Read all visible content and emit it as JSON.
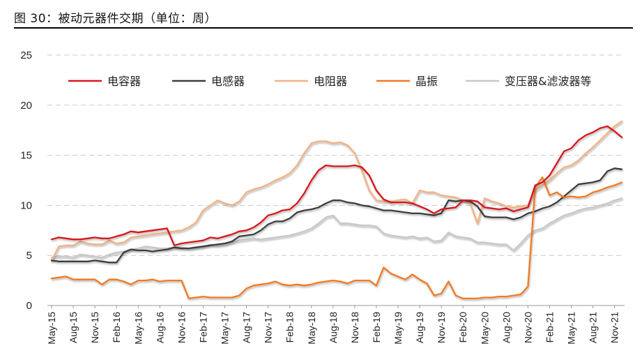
{
  "figure": {
    "title": "图 30：被动元器件交期（单位：周）"
  },
  "chart_data": {
    "type": "line",
    "ylim": [
      0,
      25
    ],
    "yticks": [
      "0",
      "5",
      "10",
      "15",
      "20",
      "25"
    ],
    "grid": "horizontal-dashed",
    "legend_position": "top",
    "x": [
      "May-15",
      "Jun-15",
      "Jul-15",
      "Aug-15",
      "Sep-15",
      "Oct-15",
      "Nov-15",
      "Dec-15",
      "Jan-16",
      "Feb-16",
      "Mar-16",
      "Apr-16",
      "May-16",
      "Jun-16",
      "Jul-16",
      "Aug-16",
      "Sep-16",
      "Oct-16",
      "Nov-16",
      "Dec-16",
      "Jan-17",
      "Feb-17",
      "Mar-17",
      "Apr-17",
      "May-17",
      "Jun-17",
      "Jul-17",
      "Aug-17",
      "Sep-17",
      "Oct-17",
      "Nov-17",
      "Dec-17",
      "Jan-18",
      "Feb-18",
      "Mar-18",
      "Apr-18",
      "May-18",
      "Jun-18",
      "Jul-18",
      "Aug-18",
      "Sep-18",
      "Oct-18",
      "Nov-18",
      "Dec-18",
      "Jan-19",
      "Feb-19",
      "Mar-19",
      "Apr-19",
      "May-19",
      "Jun-19",
      "Jul-19",
      "Aug-19",
      "Sep-19",
      "Oct-19",
      "Nov-19",
      "Dec-19",
      "Jan-20",
      "Feb-20",
      "Mar-20",
      "Apr-20",
      "May-20",
      "Jun-20",
      "Jul-20",
      "Aug-20",
      "Sep-20",
      "Oct-20",
      "Nov-20",
      "Dec-20",
      "Jan-21",
      "Feb-21",
      "Mar-21",
      "Apr-21",
      "May-21",
      "Jun-21",
      "Jul-21",
      "Aug-21",
      "Sep-21",
      "Oct-21",
      "Nov-21",
      "Dec-21"
    ],
    "x_tick_labels": [
      "May-15",
      "Aug-15",
      "Nov-15",
      "Feb-16",
      "May-16",
      "Aug-16",
      "Nov-16",
      "Feb-17",
      "May-17",
      "Aug-17",
      "Nov-17",
      "Feb-18",
      "May-18",
      "Aug-18",
      "Nov-18",
      "Feb-19",
      "May-19",
      "Aug-19",
      "Nov-19",
      "Feb-20",
      "May-20",
      "Aug-20",
      "Nov-20",
      "Feb-21",
      "May-21",
      "Aug-21",
      "Nov-21"
    ],
    "series": [
      {
        "name": "电容器",
        "color": "#d7191c",
        "values": [
          6.6,
          6.8,
          6.7,
          6.6,
          6.6,
          6.7,
          6.8,
          6.7,
          6.7,
          6.9,
          7.1,
          7.4,
          7.3,
          7.4,
          7.5,
          7.6,
          7.7,
          6.0,
          6.2,
          6.3,
          6.4,
          6.5,
          6.8,
          6.7,
          6.9,
          7.1,
          7.4,
          7.5,
          7.8,
          8.3,
          9.0,
          9.2,
          9.5,
          9.6,
          10.2,
          11.2,
          12.5,
          13.5,
          14.0,
          13.9,
          13.9,
          13.9,
          14.0,
          13.8,
          13.0,
          11.5,
          10.6,
          10.3,
          10.3,
          10.3,
          10.2,
          9.9,
          9.6,
          9.2,
          9.6,
          9.7,
          9.8,
          10.5,
          10.5,
          10.4,
          9.8,
          9.7,
          9.6,
          9.7,
          9.4,
          9.6,
          9.8,
          12.0,
          12.3,
          13.0,
          14.2,
          15.4,
          15.7,
          16.5,
          17.0,
          17.3,
          17.7,
          17.9,
          17.4,
          16.8
        ]
      },
      {
        "name": "电感器",
        "color": "#3c3c3c",
        "values": [
          4.5,
          4.4,
          4.4,
          4.4,
          4.4,
          4.4,
          4.5,
          4.4,
          4.3,
          4.3,
          5.3,
          5.6,
          5.5,
          5.5,
          5.4,
          5.5,
          5.6,
          5.8,
          5.7,
          5.7,
          5.8,
          5.9,
          6.0,
          6.1,
          6.2,
          6.4,
          6.9,
          7.0,
          7.1,
          7.5,
          8.1,
          8.4,
          8.4,
          8.7,
          9.3,
          9.5,
          9.6,
          9.8,
          10.2,
          10.5,
          10.5,
          10.3,
          10.2,
          10.0,
          9.9,
          9.7,
          9.5,
          9.5,
          9.4,
          9.3,
          9.2,
          9.2,
          9.1,
          9.0,
          9.2,
          10.5,
          10.4,
          10.5,
          10.4,
          9.9,
          8.9,
          8.8,
          8.8,
          8.8,
          8.6,
          8.8,
          9.2,
          9.4,
          9.7,
          9.9,
          10.3,
          10.9,
          11.5,
          12.1,
          12.2,
          12.3,
          12.5,
          13.4,
          13.7,
          13.6
        ]
      },
      {
        "name": "电阻器",
        "color": "#f4b183",
        "values": [
          4.5,
          5.9,
          6.0,
          6.0,
          6.4,
          6.2,
          6.1,
          6.1,
          6.5,
          6.2,
          6.3,
          6.8,
          6.9,
          7.0,
          7.1,
          7.2,
          7.3,
          7.4,
          7.5,
          7.8,
          8.3,
          9.5,
          10.0,
          10.5,
          10.2,
          10.0,
          10.4,
          11.3,
          11.6,
          11.8,
          12.1,
          12.5,
          12.8,
          13.2,
          14.0,
          15.2,
          16.2,
          16.4,
          16.4,
          16.2,
          16.3,
          16.0,
          15.2,
          13.5,
          11.5,
          10.5,
          10.4,
          10.4,
          10.5,
          10.6,
          10.2,
          11.5,
          11.3,
          11.3,
          11.0,
          10.9,
          10.8,
          10.5,
          10.2,
          8.2,
          10.7,
          10.4,
          10.2,
          9.9,
          9.8,
          9.9,
          10.0,
          11.5,
          12.0,
          12.5,
          13.2,
          13.8,
          14.0,
          14.5,
          15.2,
          15.8,
          16.5,
          17.2,
          17.9,
          18.4
        ]
      },
      {
        "name": "晶振",
        "color": "#f47920",
        "values": [
          2.7,
          2.8,
          2.9,
          2.6,
          2.6,
          2.6,
          2.6,
          2.1,
          2.6,
          2.6,
          2.4,
          2.1,
          2.5,
          2.5,
          2.6,
          2.4,
          2.5,
          2.5,
          2.5,
          0.7,
          0.8,
          0.9,
          0.8,
          0.8,
          0.8,
          0.8,
          1.0,
          1.7,
          2.0,
          2.1,
          2.2,
          2.4,
          2.1,
          2.0,
          2.1,
          2.0,
          2.1,
          2.3,
          2.4,
          2.5,
          2.4,
          2.2,
          2.5,
          2.5,
          2.5,
          2.0,
          3.8,
          3.2,
          2.9,
          2.6,
          3.1,
          2.6,
          2.2,
          1.0,
          1.2,
          2.4,
          1.0,
          0.7,
          0.7,
          0.7,
          0.8,
          0.8,
          0.9,
          0.9,
          1.0,
          1.1,
          1.9,
          11.8,
          12.8,
          11.0,
          11.3,
          10.8,
          10.9,
          10.8,
          10.9,
          11.3,
          11.5,
          11.8,
          12.0,
          12.3
        ]
      },
      {
        "name": "变压器&滤波器等",
        "color": "#c8c8c8",
        "values": [
          4.8,
          4.9,
          4.9,
          4.8,
          5.1,
          5.0,
          4.9,
          4.8,
          5.1,
          5.3,
          5.4,
          5.6,
          5.7,
          5.9,
          5.8,
          5.7,
          5.7,
          5.8,
          5.8,
          5.7,
          5.8,
          5.9,
          6.1,
          6.0,
          6.1,
          6.3,
          6.5,
          6.6,
          6.7,
          6.6,
          6.7,
          6.8,
          6.9,
          7.0,
          7.2,
          7.4,
          7.7,
          8.2,
          8.8,
          9.0,
          8.2,
          8.2,
          8.1,
          8.0,
          8.0,
          7.9,
          7.2,
          7.0,
          6.9,
          6.8,
          6.9,
          6.7,
          6.8,
          6.4,
          6.5,
          7.3,
          6.9,
          6.8,
          6.7,
          6.3,
          6.3,
          6.2,
          6.1,
          6.1,
          5.5,
          6.2,
          7.0,
          7.5,
          7.7,
          8.2,
          8.6,
          9.0,
          9.2,
          9.5,
          9.7,
          9.8,
          10.0,
          10.2,
          10.5,
          10.7
        ]
      }
    ]
  }
}
